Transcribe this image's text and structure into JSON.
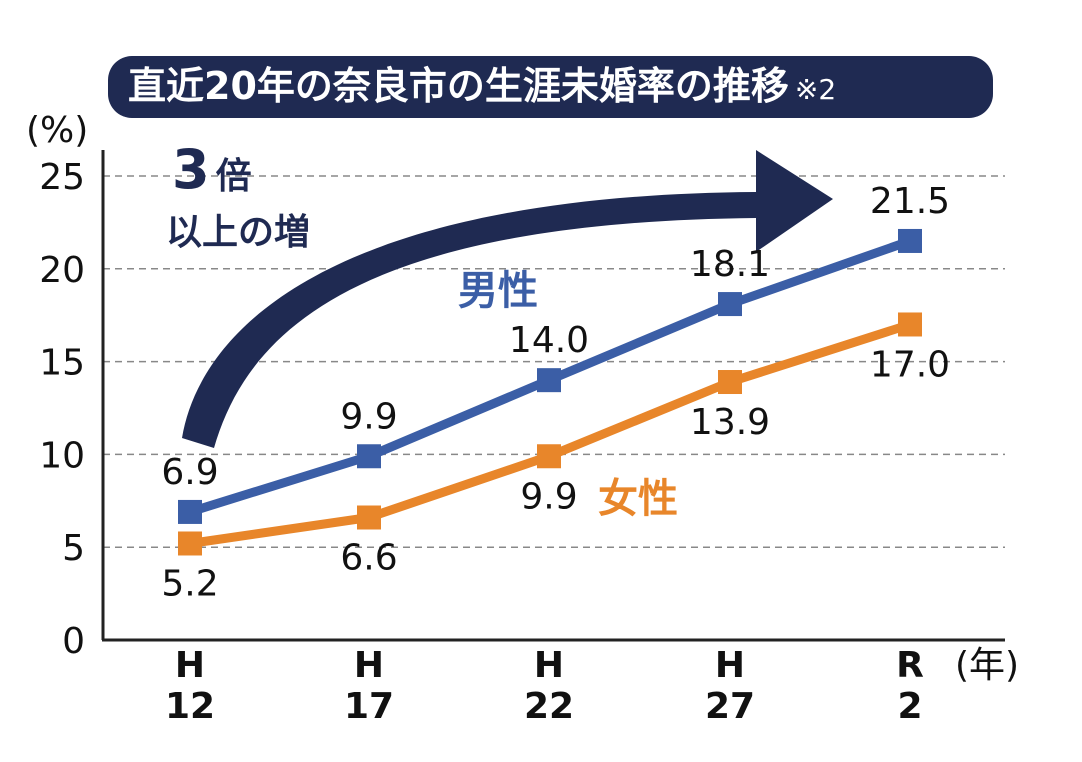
{
  "chart_data": {
    "type": "line",
    "title": "直近20年の奈良市の生涯未婚率の推移",
    "title_note": "※2",
    "ylabel": "(%)",
    "xlabel": "(年)",
    "ylim": [
      0,
      25
    ],
    "yticks": [
      "0",
      "5",
      "10",
      "15",
      "20",
      "25"
    ],
    "grid": true,
    "categories": [
      {
        "top": "H",
        "bottom": "12"
      },
      {
        "top": "H",
        "bottom": "17"
      },
      {
        "top": "H",
        "bottom": "22"
      },
      {
        "top": "H",
        "bottom": "27"
      },
      {
        "top": "R",
        "bottom": "2"
      }
    ],
    "series": [
      {
        "name": "男性",
        "color": "#3b5ea6",
        "values": [
          6.9,
          9.9,
          14.0,
          18.1,
          21.5
        ],
        "labels": [
          "6.9",
          "9.9",
          "14.0",
          "18.1",
          "21.5"
        ],
        "label_position": "above"
      },
      {
        "name": "女性",
        "color": "#e8862a",
        "values": [
          5.2,
          6.6,
          9.9,
          13.9,
          17.0
        ],
        "labels": [
          "5.2",
          "6.6",
          "9.9",
          "13.9",
          "17.0"
        ],
        "label_position": "below"
      }
    ],
    "annotation": {
      "line1": "3",
      "line1_suffix": "倍",
      "line2": "以上の増",
      "arrow_color": "#1f2a52"
    },
    "title_bg_color": "#1f2a52"
  }
}
